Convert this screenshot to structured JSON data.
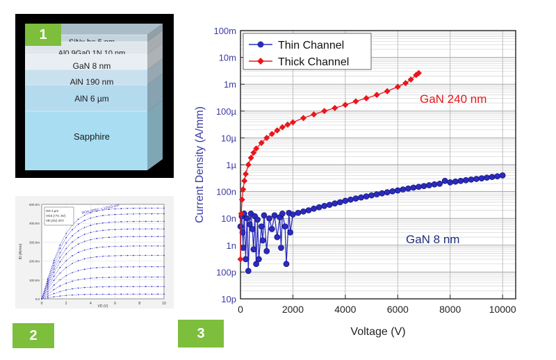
{
  "badges": [
    "1",
    "2",
    "3"
  ],
  "layer_stack": {
    "layers": [
      {
        "label": "SiNx h= 5 nm",
        "color": "#c4d4de"
      },
      {
        "label": "Al0.9Ga0.1N 10 nm",
        "color": "#dfe6ec"
      },
      {
        "label": "GaN 8 nm",
        "color": "#e8eef2"
      },
      {
        "label": "AlN 190 nm",
        "color": "#c9e0ee"
      },
      {
        "label": "AlN 6 µm",
        "color": "#b4daee"
      },
      {
        "label": "Sapphire",
        "color": "#a9def2"
      }
    ]
  },
  "iv_inset": {
    "legend_lines": [
      "GD 3 µm",
      "VGS [-7V, 3V]",
      "Vth (0V) 3TV"
    ],
    "annotation": "RON,SPEC = 12mΩ·cm²",
    "xlabel": "VD (V)",
    "ylabel": "ID (A/mm)",
    "xticks": [
      "0",
      "2",
      "4",
      "6",
      "8",
      "10"
    ],
    "yticks": [
      "0.0",
      "100.0m",
      "200.0m",
      "300.0m",
      "400.0m",
      "500.0m"
    ],
    "saturation_levels": [
      0.48,
      0.45,
      0.41,
      0.37,
      0.33,
      0.28,
      0.23,
      0.17,
      0.115,
      0.065,
      0.025
    ],
    "color": "#3535c9"
  },
  "chart_data": {
    "type": "scatter",
    "title": "",
    "xlabel": "Voltage (V)",
    "ylabel": "Current Density (A/mm)",
    "xlim": [
      0,
      10500
    ],
    "ylim": [
      1e-11,
      0.1
    ],
    "y_scale": "log",
    "grid": true,
    "legend_position": "top-left",
    "xticks": [
      0,
      2000,
      4000,
      6000,
      8000,
      10000
    ],
    "xtick_labels": [
      "0",
      "2000",
      "4000",
      "6000",
      "8000",
      "10000"
    ],
    "yticks": [
      1e-11,
      1e-10,
      1e-09,
      1e-08,
      1e-07,
      1e-06,
      1e-05,
      0.0001,
      0.001,
      0.01,
      0.1
    ],
    "ytick_labels": [
      "10p",
      "100p",
      "1n",
      "10n",
      "100n",
      "1µ",
      "10µ",
      "100µ",
      "1m",
      "10m",
      "100m"
    ],
    "series": [
      {
        "name": "Thin Channel",
        "color": "#2b2bbf",
        "marker": "circle",
        "points": [
          [
            0,
            5e-09
          ],
          [
            50,
            1.2e-08
          ],
          [
            80,
            3e-09
          ],
          [
            100,
            8e-10
          ],
          [
            140,
            1.5e-08
          ],
          [
            200,
            3e-10
          ],
          [
            250,
            1e-08
          ],
          [
            300,
            1.1e-10
          ],
          [
            350,
            6e-09
          ],
          [
            400,
            1.5e-08
          ],
          [
            450,
            4e-09
          ],
          [
            500,
            7e-10
          ],
          [
            550,
            1.2e-08
          ],
          [
            600,
            2e-10
          ],
          [
            650,
            9e-09
          ],
          [
            700,
            3e-10
          ],
          [
            800,
            5e-09
          ],
          [
            850,
            1.5e-09
          ],
          [
            900,
            1.3e-08
          ],
          [
            1000,
            6e-10
          ],
          [
            1100,
            1e-08
          ],
          [
            1200,
            4e-09
          ],
          [
            1300,
            1.3e-08
          ],
          [
            1400,
            2e-09
          ],
          [
            1500,
            1.1e-08
          ],
          [
            1550,
            8e-10
          ],
          [
            1600,
            1.5e-08
          ],
          [
            1700,
            5e-09
          ],
          [
            1750,
            2e-10
          ],
          [
            1850,
            1.6e-08
          ],
          [
            1900,
            3e-09
          ],
          [
            2000,
            1.4e-08
          ],
          [
            2200,
            1.6e-08
          ],
          [
            2400,
            1.8e-08
          ],
          [
            2600,
            2e-08
          ],
          [
            2800,
            2.3e-08
          ],
          [
            3000,
            2.6e-08
          ],
          [
            3200,
            2.9e-08
          ],
          [
            3400,
            3.2e-08
          ],
          [
            3600,
            3.6e-08
          ],
          [
            3800,
            4e-08
          ],
          [
            4000,
            4.5e-08
          ],
          [
            4200,
            5e-08
          ],
          [
            4400,
            5.5e-08
          ],
          [
            4600,
            6e-08
          ],
          [
            4800,
            6.6e-08
          ],
          [
            5000,
            7.2e-08
          ],
          [
            5200,
            7.9e-08
          ],
          [
            5400,
            8.6e-08
          ],
          [
            5600,
            9.4e-08
          ],
          [
            5800,
            1.02e-07
          ],
          [
            6000,
            1.1e-07
          ],
          [
            6200,
            1.2e-07
          ],
          [
            6400,
            1.3e-07
          ],
          [
            6600,
            1.4e-07
          ],
          [
            6800,
            1.5e-07
          ],
          [
            7000,
            1.6e-07
          ],
          [
            7200,
            1.72e-07
          ],
          [
            7400,
            1.85e-07
          ],
          [
            7600,
            1.95e-07
          ],
          [
            7800,
            2.5e-07
          ],
          [
            8000,
            2.2e-07
          ],
          [
            8200,
            2.35e-07
          ],
          [
            8400,
            2.5e-07
          ],
          [
            8600,
            2.65e-07
          ],
          [
            8800,
            2.8e-07
          ],
          [
            9000,
            2.95e-07
          ],
          [
            9200,
            3.1e-07
          ],
          [
            9400,
            3.3e-07
          ],
          [
            9600,
            3.5e-07
          ],
          [
            9800,
            3.7e-07
          ],
          [
            10000,
            4e-07
          ]
        ]
      },
      {
        "name": "Thick Channel",
        "color": "#e8171c",
        "marker": "diamond",
        "points": [
          [
            0,
            3e-10
          ],
          [
            30,
            1.5e-08
          ],
          [
            60,
            5e-08
          ],
          [
            100,
            1.2e-07
          ],
          [
            150,
            2.5e-07
          ],
          [
            200,
            4.5e-07
          ],
          [
            300,
            1e-06
          ],
          [
            400,
            1.8e-06
          ],
          [
            500,
            2.8e-06
          ],
          [
            600,
            4e-06
          ],
          [
            800,
            6.5e-06
          ],
          [
            1000,
            1e-05
          ],
          [
            1200,
            1.4e-05
          ],
          [
            1400,
            1.9e-05
          ],
          [
            1600,
            2.5e-05
          ],
          [
            1800,
            3.1e-05
          ],
          [
            2000,
            3.8e-05
          ],
          [
            2400,
            5.5e-05
          ],
          [
            2800,
            7.5e-05
          ],
          [
            3200,
            0.0001
          ],
          [
            3600,
            0.00013
          ],
          [
            4000,
            0.00017
          ],
          [
            4400,
            0.00023
          ],
          [
            4800,
            0.0003
          ],
          [
            5200,
            0.0004
          ],
          [
            5600,
            0.00055
          ],
          [
            6000,
            0.0008
          ],
          [
            6300,
            0.0011
          ],
          [
            6500,
            0.0015
          ],
          [
            6700,
            0.0022
          ],
          [
            6800,
            0.0026
          ]
        ]
      }
    ],
    "annotations": [
      {
        "text": "GaN 240 nm",
        "color": "#e8171c"
      },
      {
        "text": "GaN 8 nm",
        "color": "#1f2f7a"
      }
    ]
  }
}
